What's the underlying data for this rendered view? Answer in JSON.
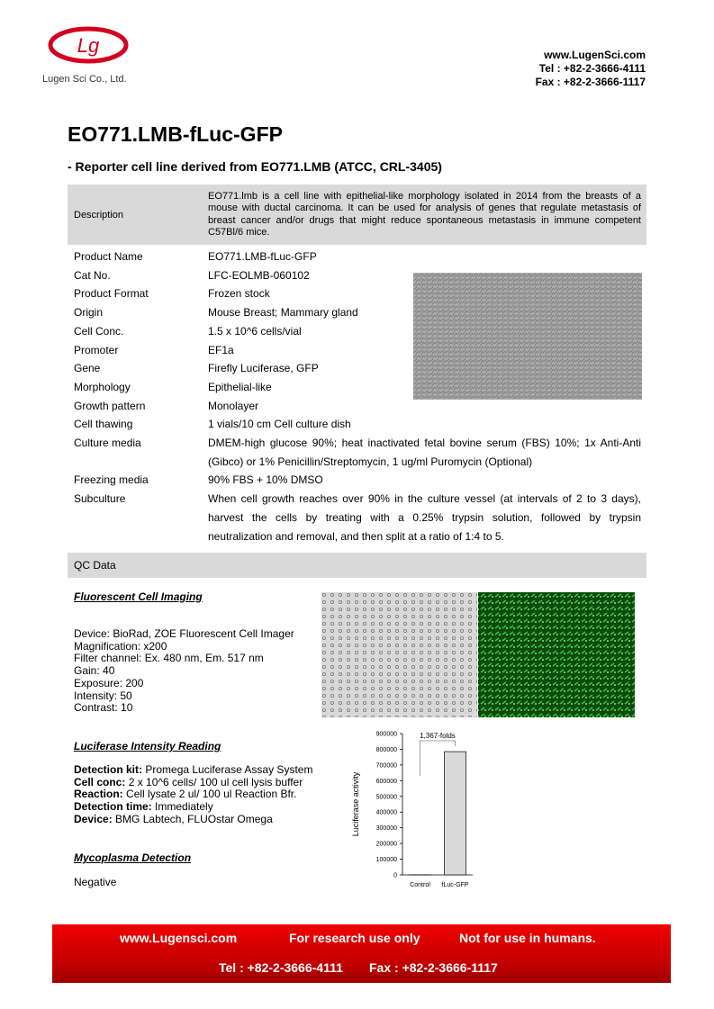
{
  "header": {
    "logo": "Lg",
    "company": "Lugen Sci Co., Ltd.",
    "website": "www.LugenSci.com",
    "tel": "Tel : +82-2-3666-4111",
    "fax": "Fax : +82-2-3666-1117"
  },
  "title": "EO771.LMB-fLuc-GFP",
  "subtitle": "- Reporter cell line derived from EO771.LMB (ATCC, CRL-3405)",
  "description": {
    "label": "Description",
    "text": "EO771.lmb is a cell line with epithelial-like morphology isolated in 2014 from the breasts of a mouse with ductal carcinoma. It can be used for analysis of genes that regulate metastasis of breast cancer and/or drugs that might reduce spontaneous metastasis in immune competent C57Bl/6 mice."
  },
  "specs": [
    [
      "Product Name",
      "EO771.LMB-fLuc-GFP"
    ],
    [
      "Cat No.",
      "LFC-EOLMB-060102"
    ],
    [
      "Product Format",
      "Frozen stock"
    ],
    [
      "Origin",
      "Mouse Breast; Mammary gland"
    ],
    [
      "Cell Conc.",
      "1.5 x 10^6 cells/vial"
    ],
    [
      "Promoter",
      "EF1a"
    ],
    [
      "Gene",
      "Firefly Luciferase, GFP"
    ],
    [
      "Morphology",
      "Epithelial-like"
    ],
    [
      "Growth pattern",
      "Monolayer"
    ],
    [
      "Cell thawing",
      "1 vials/10 cm Cell culture dish"
    ],
    [
      "Culture media",
      "DMEM-high glucose 90%; heat inactivated fetal bovine serum (FBS) 10%; 1x Anti-Anti (Gibco) or 1% Penicillin/Streptomycin, 1 ug/ml Puromycin (Optional)"
    ],
    [
      "Freezing media",
      "90% FBS + 10% DMSO"
    ],
    [
      "Subculture",
      "When cell growth reaches over 90% in the culture vessel (at intervals of 2 to 3 days), harvest the cells by treating with a 0.25% trypsin solution, followed by trypsin neutralization and removal, and then split at a ratio of 1:4 to 5."
    ]
  ],
  "qc": {
    "label": "QC Data",
    "imaging": {
      "heading": "Fluorescent Cell Imaging",
      "lines": [
        "Device: BioRad, ZOE Fluorescent Cell Imager",
        "Magnification: x200",
        "Filter channel: Ex. 480 nm, Em. 517 nm",
        "Gain: 40",
        "Exposure: 200",
        "Intensity: 50",
        "Contrast: 10"
      ]
    },
    "luciferase": {
      "heading": "Luciferase Intensity Reading",
      "lines": [
        {
          "label": "Detection kit:",
          "text": "Promega Luciferase Assay System"
        },
        {
          "label": "Cell conc:",
          "text": "2 x 10^6 cells/ 100 ul cell lysis buffer"
        },
        {
          "label": "Reaction:",
          "text": "Cell lysate 2 ul/ 100 ul Reaction Bfr."
        },
        {
          "label": "Detection time:",
          "text": "Immediately"
        },
        {
          "label": "Device:",
          "text": "BMG Labtech, FLUOstar Omega"
        }
      ]
    },
    "mycoplasma": {
      "heading": "Mycoplasma Detection",
      "result": "Negative"
    }
  },
  "chart_data": {
    "type": "bar",
    "y_label": "Luciferase activity",
    "annotation": "1,367-folds",
    "categories": [
      "Control",
      "fLuc-GFP"
    ],
    "values": [
      574,
      785000
    ],
    "color": "#d9d9d9",
    "ylim": [
      0,
      900000
    ],
    "yticks": [
      0,
      100000,
      200000,
      300000,
      400000,
      500000,
      600000,
      700000,
      800000,
      900000
    ]
  },
  "footer": {
    "website": "www.Lugensci.com",
    "note1": "For research use only",
    "note2": "Not for use in humans.",
    "tel": "Tel : +82-2-3666-4111",
    "fax": "Fax : +82-2-3666-1117"
  }
}
